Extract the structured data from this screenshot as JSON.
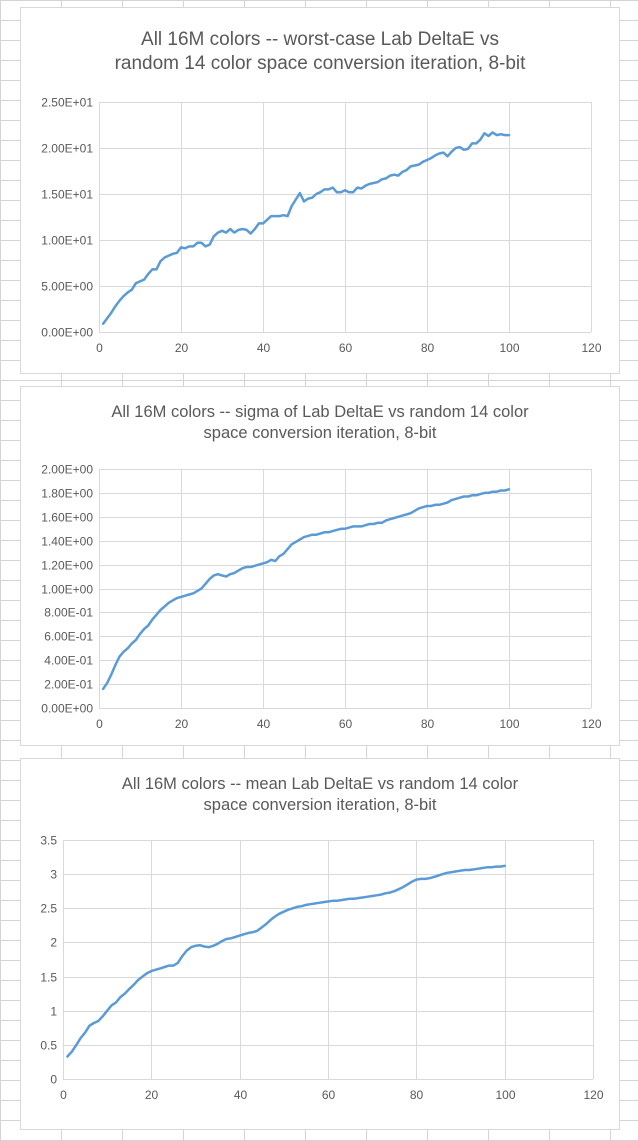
{
  "sheet": {
    "gridline_color": "#d4d4d4",
    "background": "#ffffff"
  },
  "chart_data": [
    {
      "type": "line",
      "title_lines": [
        "All 16M colors -- worst-case Lab DeltaE vs",
        "random 14 color space conversion iteration, 8-bit"
      ],
      "xlabel": "",
      "ylabel": "",
      "xlim": [
        0,
        120
      ],
      "xticks": [
        "0",
        "20",
        "40",
        "60",
        "80",
        "100",
        "120"
      ],
      "ylim": [
        0,
        25
      ],
      "yticks": [
        "0.00E+00",
        "5.00E+00",
        "1.00E+01",
        "1.50E+01",
        "2.00E+01",
        "2.50E+01"
      ],
      "grid": true,
      "legend": "none",
      "line_color": "#5b9bd5",
      "x": [
        1,
        2,
        3,
        4,
        5,
        6,
        7,
        8,
        9,
        10,
        11,
        12,
        13,
        14,
        15,
        16,
        17,
        18,
        19,
        20,
        21,
        22,
        23,
        24,
        25,
        26,
        27,
        28,
        29,
        30,
        31,
        32,
        33,
        34,
        35,
        36,
        37,
        38,
        39,
        40,
        41,
        42,
        43,
        44,
        45,
        46,
        47,
        48,
        49,
        50,
        51,
        52,
        53,
        54,
        55,
        56,
        57,
        58,
        59,
        60,
        61,
        62,
        63,
        64,
        65,
        66,
        67,
        68,
        69,
        70,
        71,
        72,
        73,
        74,
        75,
        76,
        77,
        78,
        79,
        80,
        81,
        82,
        83,
        84,
        85,
        86,
        87,
        88,
        89,
        90,
        91,
        92,
        93,
        94,
        95,
        96,
        97,
        98,
        99,
        100
      ],
      "y": [
        0.9,
        1.5,
        2.1,
        2.8,
        3.4,
        3.9,
        4.3,
        4.6,
        5.3,
        5.5,
        5.7,
        6.3,
        6.8,
        6.8,
        7.7,
        8.1,
        8.3,
        8.5,
        8.6,
        9.2,
        9.1,
        9.3,
        9.3,
        9.7,
        9.7,
        9.3,
        9.5,
        10.4,
        10.8,
        11.0,
        10.8,
        11.2,
        10.8,
        11.1,
        11.2,
        11.1,
        10.7,
        11.2,
        11.8,
        11.8,
        12.2,
        12.6,
        12.6,
        12.6,
        12.7,
        12.6,
        13.7,
        14.4,
        15.1,
        14.2,
        14.5,
        14.6,
        15.0,
        15.2,
        15.5,
        15.5,
        15.7,
        15.2,
        15.2,
        15.4,
        15.2,
        15.2,
        15.7,
        15.6,
        15.9,
        16.1,
        16.2,
        16.3,
        16.6,
        16.7,
        17.0,
        17.1,
        17.0,
        17.4,
        17.6,
        18.0,
        18.1,
        18.2,
        18.5,
        18.7,
        18.9,
        19.2,
        19.4,
        19.5,
        19.1,
        19.6,
        20.0,
        20.1,
        19.8,
        19.9,
        20.5,
        20.5,
        20.9,
        21.6,
        21.3,
        21.7,
        21.4,
        21.5,
        21.4,
        21.4
      ]
    },
    {
      "type": "line",
      "title_lines": [
        "All 16M colors -- sigma of Lab DeltaE vs random 14 color",
        "space conversion iteration, 8-bit"
      ],
      "xlabel": "",
      "ylabel": "",
      "xlim": [
        0,
        120
      ],
      "xticks": [
        "0",
        "20",
        "40",
        "60",
        "80",
        "100",
        "120"
      ],
      "ylim": [
        0,
        2
      ],
      "yticks": [
        "0.00E+00",
        "2.00E-01",
        "4.00E-01",
        "6.00E-01",
        "8.00E-01",
        "1.00E+00",
        "1.20E+00",
        "1.40E+00",
        "1.60E+00",
        "1.80E+00",
        "2.00E+00"
      ],
      "grid": true,
      "legend": "none",
      "line_color": "#5b9bd5",
      "x": [
        1,
        2,
        3,
        4,
        5,
        6,
        7,
        8,
        9,
        10,
        11,
        12,
        13,
        14,
        15,
        16,
        17,
        18,
        19,
        20,
        21,
        22,
        23,
        24,
        25,
        26,
        27,
        28,
        29,
        30,
        31,
        32,
        33,
        34,
        35,
        36,
        37,
        38,
        39,
        40,
        41,
        42,
        43,
        44,
        45,
        46,
        47,
        48,
        49,
        50,
        51,
        52,
        53,
        54,
        55,
        56,
        57,
        58,
        59,
        60,
        61,
        62,
        63,
        64,
        65,
        66,
        67,
        68,
        69,
        70,
        71,
        72,
        73,
        74,
        75,
        76,
        77,
        78,
        79,
        80,
        81,
        82,
        83,
        84,
        85,
        86,
        87,
        88,
        89,
        90,
        91,
        92,
        93,
        94,
        95,
        96,
        97,
        98,
        99,
        100
      ],
      "y": [
        0.16,
        0.21,
        0.28,
        0.36,
        0.43,
        0.47,
        0.5,
        0.54,
        0.57,
        0.62,
        0.66,
        0.69,
        0.74,
        0.78,
        0.82,
        0.85,
        0.88,
        0.9,
        0.92,
        0.93,
        0.94,
        0.95,
        0.96,
        0.98,
        1.0,
        1.04,
        1.08,
        1.11,
        1.12,
        1.11,
        1.1,
        1.12,
        1.13,
        1.15,
        1.17,
        1.18,
        1.18,
        1.19,
        1.2,
        1.21,
        1.22,
        1.24,
        1.23,
        1.27,
        1.29,
        1.33,
        1.37,
        1.39,
        1.41,
        1.43,
        1.44,
        1.45,
        1.45,
        1.46,
        1.47,
        1.47,
        1.48,
        1.49,
        1.5,
        1.5,
        1.51,
        1.52,
        1.52,
        1.52,
        1.53,
        1.54,
        1.54,
        1.55,
        1.55,
        1.57,
        1.58,
        1.59,
        1.6,
        1.61,
        1.62,
        1.63,
        1.65,
        1.67,
        1.68,
        1.69,
        1.69,
        1.7,
        1.7,
        1.71,
        1.72,
        1.74,
        1.75,
        1.76,
        1.77,
        1.77,
        1.78,
        1.78,
        1.79,
        1.8,
        1.8,
        1.81,
        1.81,
        1.82,
        1.82,
        1.83
      ]
    },
    {
      "type": "line",
      "title_lines": [
        "All 16M colors -- mean Lab DeltaE vs random 14 color",
        "space conversion iteration, 8-bit"
      ],
      "xlabel": "",
      "ylabel": "",
      "xlim": [
        0,
        120
      ],
      "xticks": [
        "0",
        "20",
        "40",
        "60",
        "80",
        "100",
        "120"
      ],
      "ylim": [
        0,
        3.5
      ],
      "yticks": [
        "0",
        "0.5",
        "1",
        "1.5",
        "2",
        "2.5",
        "3",
        "3.5"
      ],
      "grid": true,
      "legend": "none",
      "line_color": "#5b9bd5",
      "x": [
        1,
        2,
        3,
        4,
        5,
        6,
        7,
        8,
        9,
        10,
        11,
        12,
        13,
        14,
        15,
        16,
        17,
        18,
        19,
        20,
        21,
        22,
        23,
        24,
        25,
        26,
        27,
        28,
        29,
        30,
        31,
        32,
        33,
        34,
        35,
        36,
        37,
        38,
        39,
        40,
        41,
        42,
        43,
        44,
        45,
        46,
        47,
        48,
        49,
        50,
        51,
        52,
        53,
        54,
        55,
        56,
        57,
        58,
        59,
        60,
        61,
        62,
        63,
        64,
        65,
        66,
        67,
        68,
        69,
        70,
        71,
        72,
        73,
        74,
        75,
        76,
        77,
        78,
        79,
        80,
        81,
        82,
        83,
        84,
        85,
        86,
        87,
        88,
        89,
        90,
        91,
        92,
        93,
        94,
        95,
        96,
        97,
        98,
        99,
        100
      ],
      "y": [
        0.33,
        0.4,
        0.5,
        0.6,
        0.68,
        0.78,
        0.82,
        0.85,
        0.92,
        1.0,
        1.08,
        1.12,
        1.2,
        1.25,
        1.32,
        1.38,
        1.45,
        1.5,
        1.55,
        1.58,
        1.6,
        1.62,
        1.64,
        1.66,
        1.66,
        1.7,
        1.8,
        1.88,
        1.93,
        1.95,
        1.96,
        1.94,
        1.93,
        1.95,
        1.98,
        2.02,
        2.05,
        2.06,
        2.08,
        2.1,
        2.12,
        2.14,
        2.15,
        2.17,
        2.22,
        2.27,
        2.33,
        2.38,
        2.42,
        2.45,
        2.48,
        2.5,
        2.52,
        2.53,
        2.55,
        2.56,
        2.57,
        2.58,
        2.59,
        2.6,
        2.61,
        2.61,
        2.62,
        2.63,
        2.64,
        2.64,
        2.65,
        2.66,
        2.67,
        2.68,
        2.69,
        2.7,
        2.72,
        2.73,
        2.75,
        2.78,
        2.81,
        2.85,
        2.89,
        2.92,
        2.93,
        2.93,
        2.94,
        2.96,
        2.98,
        3.0,
        3.02,
        3.03,
        3.04,
        3.05,
        3.06,
        3.06,
        3.07,
        3.08,
        3.09,
        3.1,
        3.1,
        3.11,
        3.11,
        3.12
      ]
    }
  ]
}
